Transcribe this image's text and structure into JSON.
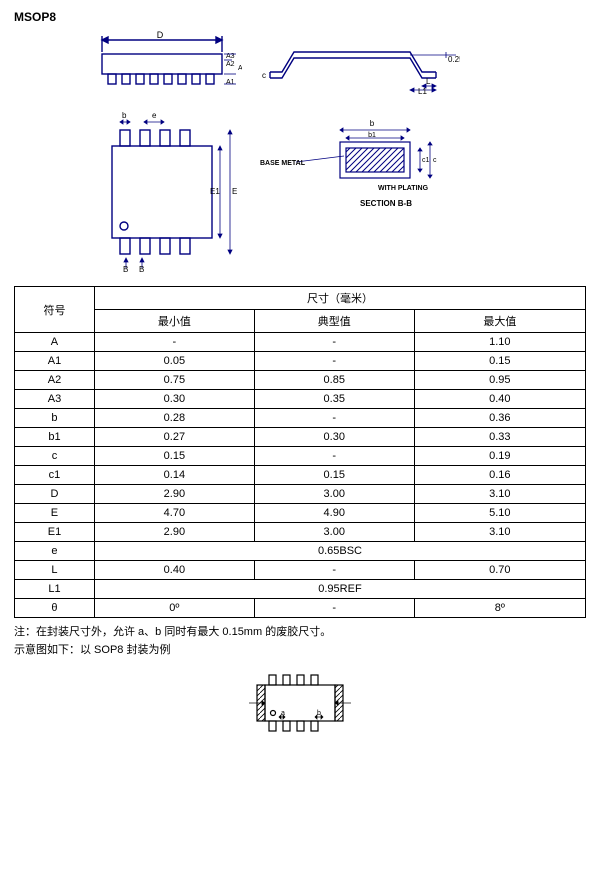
{
  "title": "MSOP8",
  "diagram_labels": {
    "top_D": "D",
    "top_A3": "A3",
    "top_A2": "A2",
    "top_A1": "A1",
    "top_A": "A",
    "side_c": "c",
    "side_025": "0.25",
    "side_L": "L",
    "side_L1": "L1",
    "front_b": "b",
    "front_e": "e",
    "front_E1": "E1",
    "front_E": "E",
    "front_B1": "B",
    "front_B2": "B",
    "section_b": "b",
    "section_b1": "b1",
    "section_c1": "c1",
    "section_c": "c",
    "base_metal": "BASE METAL",
    "with_plating": "WITH PLATING",
    "section_label": "SECTION B-B",
    "bottom_a": "a",
    "bottom_b": "b"
  },
  "table": {
    "header_symbol": "符号",
    "header_dims": "尺寸（毫米）",
    "header_min": "最小值",
    "header_typ": "典型值",
    "header_max": "最大值",
    "rows": [
      {
        "sym": "A",
        "min": "-",
        "typ": "-",
        "max": "1.10"
      },
      {
        "sym": "A1",
        "min": "0.05",
        "typ": "-",
        "max": "0.15"
      },
      {
        "sym": "A2",
        "min": "0.75",
        "typ": "0.85",
        "max": "0.95"
      },
      {
        "sym": "A3",
        "min": "0.30",
        "typ": "0.35",
        "max": "0.40"
      },
      {
        "sym": "b",
        "min": "0.28",
        "typ": "-",
        "max": "0.36"
      },
      {
        "sym": "b1",
        "min": "0.27",
        "typ": "0.30",
        "max": "0.33"
      },
      {
        "sym": "c",
        "min": "0.15",
        "typ": "-",
        "max": "0.19"
      },
      {
        "sym": "c1",
        "min": "0.14",
        "typ": "0.15",
        "max": "0.16"
      },
      {
        "sym": "D",
        "min": "2.90",
        "typ": "3.00",
        "max": "3.10"
      },
      {
        "sym": "E",
        "min": "4.70",
        "typ": "4.90",
        "max": "5.10"
      },
      {
        "sym": "E1",
        "min": "2.90",
        "typ": "3.00",
        "max": "3.10"
      },
      {
        "sym": "e",
        "span": "0.65BSC"
      },
      {
        "sym": "L",
        "min": "0.40",
        "typ": "-",
        "max": "0.70"
      },
      {
        "sym": "L1",
        "span": "0.95REF"
      },
      {
        "sym": "θ",
        "min": "0º",
        "typ": "-",
        "max": "8º"
      }
    ]
  },
  "notes": {
    "line1": "注：在封装尺寸外，允许 a、b 同时有最大 0.15mm 的废胶尺寸。",
    "line2": "示意图如下：以 SOP8 封装为例"
  },
  "colors": {
    "stroke": "#000080",
    "text": "#000000",
    "hatch": "#000080"
  }
}
